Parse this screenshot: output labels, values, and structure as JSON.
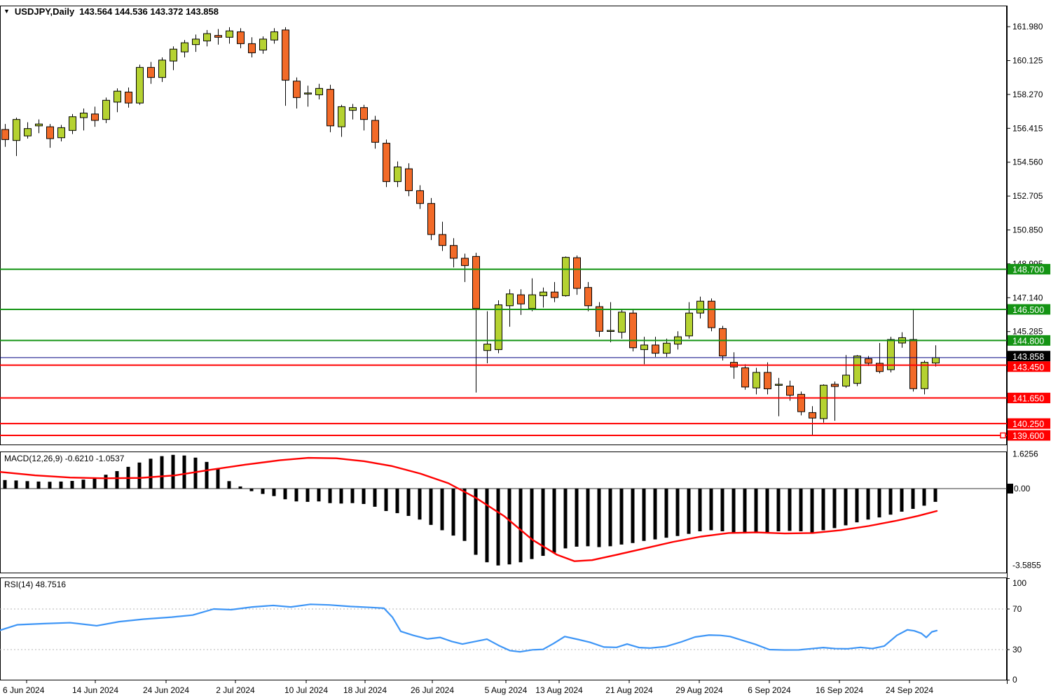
{
  "title": {
    "symbol_period": "USDJPY,Daily",
    "ohlc": "143.564 144.536 143.372 143.858"
  },
  "colors": {
    "bull_candle": "#b5d231",
    "bear_candle": "#f26a28",
    "candle_outline": "#000000",
    "resistance_green": "#149414",
    "support_red": "#ff0000",
    "current_price_line": "#000080",
    "current_price_badge": "#000000",
    "macd_histogram": "#000000",
    "macd_signal": "#ff0000",
    "rsi_line": "#3d95f6",
    "rsi_levels_dotted": "#b4b4b4",
    "axis_text": "#000000"
  },
  "chart_data": {
    "type": "candlestick",
    "symbol": "USDJPY",
    "timeframe": "Daily",
    "current_ohlc": {
      "open": 143.564,
      "high": 144.536,
      "low": 143.372,
      "close": 143.858
    },
    "price_panel": {
      "y_axis_labels": [
        "161.980",
        "160.125",
        "158.270",
        "156.415",
        "154.560",
        "152.705",
        "150.850",
        "148.995",
        "147.140",
        "145.285"
      ],
      "current_price": "143.858",
      "hlines": [
        {
          "price": 148.7,
          "label": "148.700",
          "kind": "resistance",
          "color": "#149414",
          "width": 2
        },
        {
          "price": 146.5,
          "label": "146.500",
          "kind": "resistance",
          "color": "#149414",
          "width": 2
        },
        {
          "price": 144.8,
          "label": "144.800",
          "kind": "resistance",
          "color": "#149414",
          "width": 2
        },
        {
          "price": 143.858,
          "label": "143.858",
          "kind": "current",
          "color": "#000080",
          "width": 1
        },
        {
          "price": 143.45,
          "label": "143.450",
          "kind": "support",
          "color": "#ff0000",
          "width": 2
        },
        {
          "price": 141.65,
          "label": "141.650",
          "kind": "support",
          "color": "#ff0000",
          "width": 2
        },
        {
          "price": 140.25,
          "label": "140.250",
          "kind": "support",
          "color": "#ff0000",
          "width": 2
        },
        {
          "price": 139.6,
          "label": "139.600",
          "kind": "support",
          "color": "#ff0000",
          "width": 2,
          "handle": true
        }
      ],
      "candles_ohlc": [
        [
          156.35,
          156.65,
          155.4,
          155.8
        ],
        [
          155.75,
          157.0,
          154.9,
          156.9
        ],
        [
          156.0,
          156.75,
          155.85,
          156.4
        ],
        [
          156.55,
          156.9,
          156.15,
          156.65
        ],
        [
          156.5,
          156.65,
          155.35,
          155.85
        ],
        [
          155.9,
          156.6,
          155.7,
          156.45
        ],
        [
          156.3,
          157.2,
          156.1,
          157.05
        ],
        [
          157.0,
          157.5,
          156.3,
          157.25
        ],
        [
          157.2,
          157.6,
          156.5,
          156.85
        ],
        [
          156.9,
          158.1,
          156.7,
          157.95
        ],
        [
          157.85,
          158.6,
          157.3,
          158.45
        ],
        [
          158.4,
          158.65,
          157.55,
          157.8
        ],
        [
          157.8,
          159.9,
          157.7,
          159.75
        ],
        [
          159.75,
          160.05,
          158.85,
          159.2
        ],
        [
          159.2,
          160.3,
          158.95,
          160.15
        ],
        [
          160.1,
          160.9,
          159.6,
          160.75
        ],
        [
          160.6,
          161.25,
          160.3,
          161.1
        ],
        [
          161.0,
          161.55,
          160.6,
          161.3
        ],
        [
          161.2,
          161.8,
          160.9,
          161.6
        ],
        [
          161.5,
          161.85,
          161.0,
          161.4
        ],
        [
          161.4,
          161.95,
          161.05,
          161.75
        ],
        [
          161.7,
          161.9,
          160.8,
          161.05
        ],
        [
          161.05,
          161.4,
          160.3,
          160.55
        ],
        [
          160.7,
          161.45,
          160.5,
          161.3
        ],
        [
          161.25,
          161.9,
          161.05,
          161.7
        ],
        [
          161.8,
          161.95,
          157.65,
          159.05
        ],
        [
          159.0,
          159.2,
          157.5,
          158.1
        ],
        [
          158.3,
          158.75,
          157.6,
          158.35
        ],
        [
          158.25,
          158.85,
          158.0,
          158.6
        ],
        [
          158.55,
          158.8,
          156.2,
          156.55
        ],
        [
          156.5,
          157.7,
          155.95,
          157.6
        ],
        [
          157.4,
          157.75,
          156.9,
          157.55
        ],
        [
          157.55,
          157.7,
          156.3,
          156.9
        ],
        [
          156.85,
          157.1,
          155.3,
          155.65
        ],
        [
          155.6,
          155.8,
          153.2,
          153.5
        ],
        [
          153.5,
          154.6,
          153.2,
          154.3
        ],
        [
          154.2,
          154.5,
          152.7,
          153.0
        ],
        [
          153.0,
          153.3,
          152.0,
          152.3
        ],
        [
          152.3,
          152.6,
          150.3,
          150.6
        ],
        [
          150.6,
          151.3,
          149.7,
          150.0
        ],
        [
          150.0,
          150.4,
          148.8,
          149.3
        ],
        [
          149.3,
          149.55,
          148.0,
          148.9
        ],
        [
          149.4,
          149.6,
          141.95,
          146.55
        ],
        [
          144.25,
          146.4,
          143.55,
          144.6
        ],
        [
          144.3,
          147.0,
          144.1,
          146.75
        ],
        [
          146.7,
          147.6,
          145.55,
          147.35
        ],
        [
          147.3,
          147.6,
          146.2,
          146.8
        ],
        [
          146.55,
          148.2,
          146.4,
          147.3
        ],
        [
          147.25,
          147.7,
          146.6,
          147.45
        ],
        [
          147.45,
          148.0,
          146.9,
          147.15
        ],
        [
          147.25,
          149.4,
          147.2,
          149.35
        ],
        [
          149.33,
          149.45,
          147.3,
          147.65
        ],
        [
          147.7,
          148.0,
          146.4,
          146.7
        ],
        [
          146.65,
          146.9,
          145.0,
          145.3
        ],
        [
          145.3,
          146.9,
          144.7,
          145.35
        ],
        [
          145.25,
          146.5,
          144.9,
          146.35
        ],
        [
          146.3,
          146.5,
          144.2,
          144.4
        ],
        [
          144.3,
          145.0,
          143.5,
          144.55
        ],
        [
          144.55,
          145.0,
          143.9,
          144.1
        ],
        [
          144.1,
          144.9,
          143.9,
          144.65
        ],
        [
          144.6,
          145.3,
          144.3,
          145.0
        ],
        [
          145.05,
          146.9,
          144.9,
          146.3
        ],
        [
          146.3,
          147.2,
          146.0,
          146.95
        ],
        [
          146.95,
          147.1,
          145.3,
          145.5
        ],
        [
          145.45,
          145.6,
          143.7,
          143.95
        ],
        [
          143.6,
          144.15,
          142.7,
          143.35
        ],
        [
          143.3,
          143.5,
          142.1,
          142.25
        ],
        [
          142.2,
          143.3,
          141.85,
          143.05
        ],
        [
          143.05,
          143.6,
          141.85,
          142.15
        ],
        [
          142.35,
          142.75,
          140.65,
          142.4
        ],
        [
          142.3,
          142.6,
          141.5,
          141.8
        ],
        [
          141.85,
          142.0,
          140.7,
          140.9
        ],
        [
          140.85,
          141.2,
          139.58,
          140.55
        ],
        [
          140.52,
          142.4,
          140.3,
          142.35
        ],
        [
          142.4,
          142.55,
          140.4,
          142.28
        ],
        [
          142.3,
          144.0,
          142.2,
          142.9
        ],
        [
          142.45,
          144.0,
          142.3,
          143.95
        ],
        [
          143.8,
          143.95,
          143.4,
          143.55
        ],
        [
          143.55,
          144.66,
          143.0,
          143.1
        ],
        [
          143.2,
          145.0,
          143.05,
          144.85
        ],
        [
          144.66,
          145.25,
          144.4,
          144.95
        ],
        [
          144.85,
          146.5,
          142.0,
          142.16
        ],
        [
          142.16,
          143.7,
          141.85,
          143.6
        ],
        [
          143.564,
          144.536,
          143.372,
          143.858
        ]
      ]
    },
    "macd_panel": {
      "label": "MACD(12,26,9) -0.6210 -1.0537",
      "indicator": "MACD",
      "params": "12,26,9",
      "macd_value": -0.621,
      "signal_value": -1.0537,
      "y_axis_labels": [
        "1.6256",
        "0.00",
        "-3.5855"
      ],
      "histogram": [
        0.4,
        0.38,
        0.35,
        0.33,
        0.32,
        0.33,
        0.36,
        0.42,
        0.52,
        0.65,
        0.82,
        1.02,
        1.22,
        1.4,
        1.52,
        1.58,
        1.55,
        1.45,
        1.25,
        0.95,
        0.35,
        0.1,
        -0.12,
        -0.25,
        -0.35,
        -0.5,
        -0.6,
        -0.62,
        -0.6,
        -0.68,
        -0.7,
        -0.68,
        -0.72,
        -0.85,
        -1.05,
        -1.15,
        -1.28,
        -1.45,
        -1.7,
        -1.95,
        -2.2,
        -2.45,
        -3.1,
        -3.45,
        -3.6,
        -3.55,
        -3.45,
        -3.3,
        -3.15,
        -3.0,
        -2.8,
        -2.72,
        -2.7,
        -2.74,
        -2.7,
        -2.62,
        -2.55,
        -2.45,
        -2.38,
        -2.3,
        -2.22,
        -2.12,
        -2.0,
        -1.95,
        -2.0,
        -2.05,
        -2.1,
        -2.08,
        -2.05,
        -2.0,
        -1.98,
        -2.0,
        -2.05,
        -1.95,
        -1.85,
        -1.72,
        -1.58,
        -1.45,
        -1.35,
        -1.22,
        -1.08,
        -0.95,
        -0.8,
        -0.62
      ],
      "signal_line": [
        [
          0,
          0.78
        ],
        [
          50,
          0.62
        ],
        [
          100,
          0.52
        ],
        [
          150,
          0.48
        ],
        [
          200,
          0.5
        ],
        [
          250,
          0.62
        ],
        [
          300,
          0.88
        ],
        [
          350,
          1.12
        ],
        [
          400,
          1.33
        ],
        [
          440,
          1.44
        ],
        [
          480,
          1.42
        ],
        [
          520,
          1.28
        ],
        [
          560,
          1.05
        ],
        [
          600,
          0.7
        ],
        [
          640,
          0.25
        ],
        [
          680,
          -0.45
        ],
        [
          720,
          -1.3
        ],
        [
          760,
          -2.4
        ],
        [
          795,
          -3.1
        ],
        [
          820,
          -3.4
        ],
        [
          845,
          -3.35
        ],
        [
          880,
          -3.1
        ],
        [
          920,
          -2.8
        ],
        [
          960,
          -2.5
        ],
        [
          1000,
          -2.25
        ],
        [
          1040,
          -2.08
        ],
        [
          1080,
          -2.05
        ],
        [
          1120,
          -2.1
        ],
        [
          1160,
          -2.08
        ],
        [
          1200,
          -1.95
        ],
        [
          1240,
          -1.75
        ],
        [
          1280,
          -1.5
        ],
        [
          1310,
          -1.28
        ],
        [
          1337,
          -1.05
        ]
      ]
    },
    "rsi_panel": {
      "label": "RSI(14) 48.7516",
      "indicator": "RSI",
      "params": "14",
      "rsi_value": 48.7516,
      "y_axis_labels": [
        "100",
        "70",
        "30",
        "0"
      ],
      "levels": [
        100,
        70,
        30,
        0
      ],
      "dotted_levels": [
        70,
        30
      ],
      "line": [
        [
          0,
          49
        ],
        [
          25,
          54.5
        ],
        [
          60,
          55.5
        ],
        [
          100,
          56.5
        ],
        [
          138,
          53.5
        ],
        [
          170,
          57.5
        ],
        [
          205,
          60
        ],
        [
          245,
          62
        ],
        [
          275,
          64
        ],
        [
          305,
          70
        ],
        [
          330,
          69.3
        ],
        [
          360,
          72
        ],
        [
          390,
          73.5
        ],
        [
          415,
          72
        ],
        [
          443,
          74.6
        ],
        [
          470,
          74
        ],
        [
          500,
          72.5
        ],
        [
          530,
          71.5
        ],
        [
          548,
          70.8
        ],
        [
          560,
          62
        ],
        [
          572,
          48
        ],
        [
          590,
          44
        ],
        [
          610,
          40.5
        ],
        [
          628,
          42
        ],
        [
          645,
          38
        ],
        [
          660,
          35.5
        ],
        [
          678,
          38
        ],
        [
          695,
          40.3
        ],
        [
          712,
          34
        ],
        [
          728,
          29
        ],
        [
          742,
          27.8
        ],
        [
          760,
          29.8
        ],
        [
          775,
          30.2
        ],
        [
          790,
          36
        ],
        [
          806,
          42.9
        ],
        [
          825,
          40
        ],
        [
          842,
          37.2
        ],
        [
          862,
          32.5
        ],
        [
          880,
          32.2
        ],
        [
          895,
          35.5
        ],
        [
          912,
          32
        ],
        [
          928,
          31.5
        ],
        [
          950,
          33
        ],
        [
          972,
          37.5
        ],
        [
          992,
          42.4
        ],
        [
          1012,
          44.3
        ],
        [
          1028,
          44
        ],
        [
          1042,
          42.9
        ],
        [
          1060,
          39
        ],
        [
          1078,
          35.2
        ],
        [
          1098,
          30
        ],
        [
          1120,
          29.6
        ],
        [
          1140,
          29.7
        ],
        [
          1158,
          30.9
        ],
        [
          1175,
          32
        ],
        [
          1192,
          31
        ],
        [
          1210,
          30.8
        ],
        [
          1228,
          32.2
        ],
        [
          1245,
          31
        ],
        [
          1262,
          33.5
        ],
        [
          1280,
          44
        ],
        [
          1295,
          49.5
        ],
        [
          1305,
          48.5
        ],
        [
          1315,
          46
        ],
        [
          1322,
          42
        ],
        [
          1330,
          47.5
        ],
        [
          1337,
          48.75
        ]
      ]
    },
    "x_axis": {
      "labels": [
        "6 Jun 2024",
        "14 Jun 2024",
        "24 Jun 2024",
        "2 Jul 2024",
        "10 Jul 2024",
        "18 Jul 2024",
        "26 Jul 2024",
        "5 Aug 2024",
        "13 Aug 2024",
        "21 Aug 2024",
        "29 Aug 2024",
        "6 Sep 2024",
        "16 Sep 2024",
        "24 Sep 2024"
      ],
      "positions": [
        38,
        136,
        237,
        336,
        437,
        521,
        617,
        722,
        798,
        898,
        998,
        1098,
        1198,
        1298
      ]
    }
  }
}
